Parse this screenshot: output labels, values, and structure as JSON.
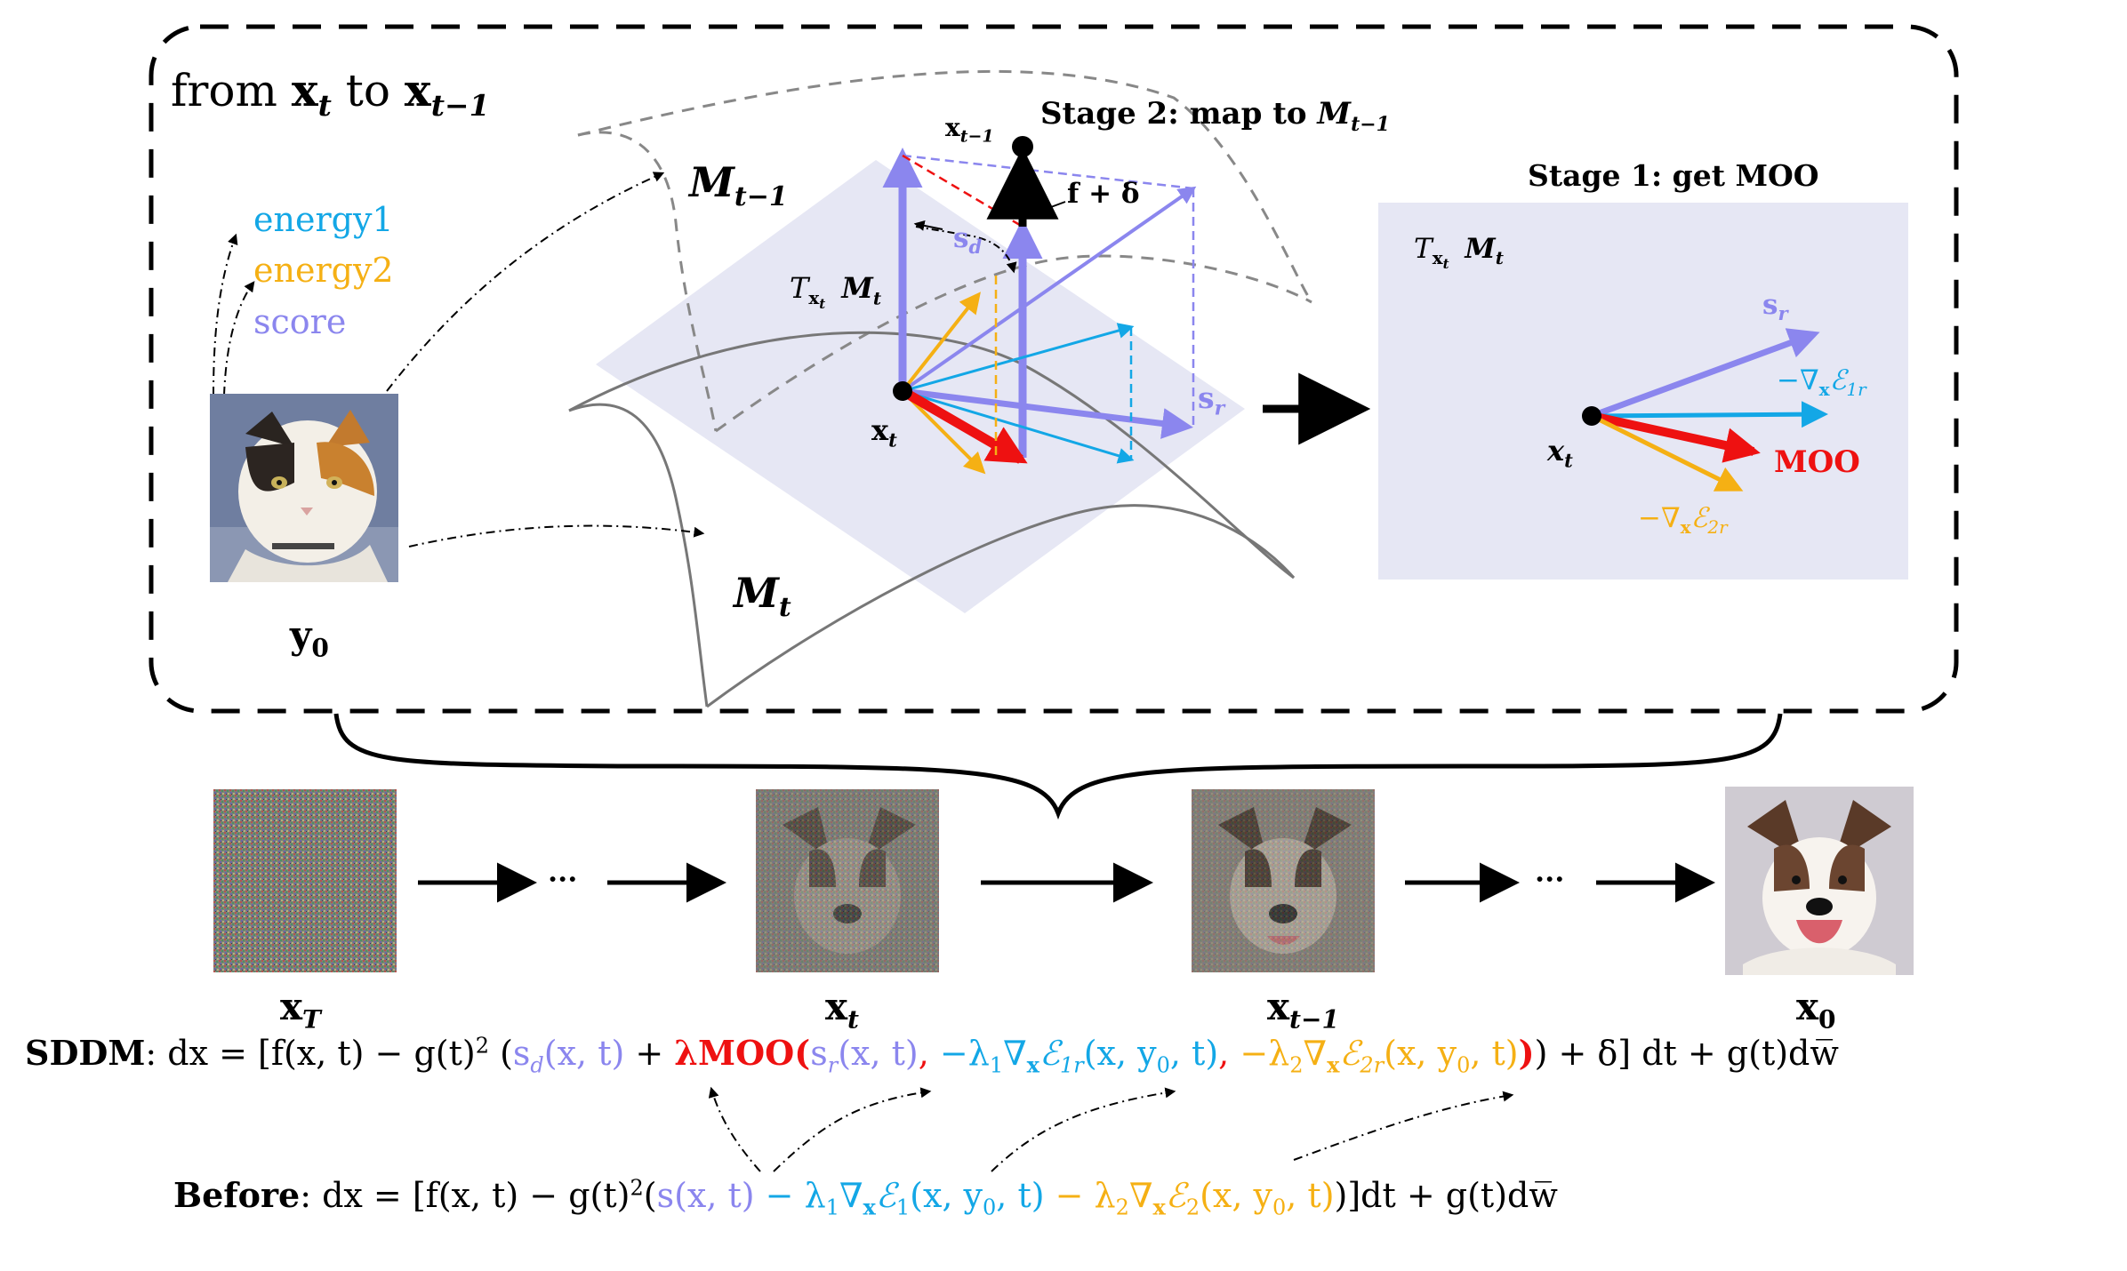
{
  "colors": {
    "score": "#8b86ee",
    "energy1": "#13a7e6",
    "energy2": "#f5b014",
    "moo": "#ee1111",
    "panel": "#e6e7f4"
  },
  "top_box": {
    "title_from": "from ",
    "title_x": "x",
    "title_t": "t",
    "title_to": " to ",
    "title_x2": "x",
    "title_t1": "t−1"
  },
  "legend": {
    "energy1": "energy1",
    "energy2": "energy2",
    "score": "score"
  },
  "cat_label": "y",
  "cat_label_sub": "0",
  "manifold": {
    "m_prev": "M",
    "m_prev_sub": "t−1",
    "m_t": "M",
    "m_t_sub": "t",
    "tangent_T": "T",
    "tangent_sub": "x",
    "tangent_subsub": "t",
    "tangent_M": "M",
    "tangent_M_sub": "t",
    "xt": "x",
    "xt_sub": "t",
    "xprev": "x",
    "xprev_sub": "t−1",
    "sd": "s",
    "sd_sub": "d",
    "sr": "s",
    "sr_sub": "r",
    "f_delta": "f + δ"
  },
  "stage2": {
    "title": "Stage 2: map to ",
    "m": "M",
    "m_sub": "t−1"
  },
  "stage1": {
    "title": "Stage 1: get MOO",
    "T": "T",
    "T_sub": "x",
    "T_subsub": "t",
    "M": "M",
    "M_sub": "t",
    "sr": "s",
    "sr_sub": "r",
    "grad1": "−∇",
    "grad1_x": "x",
    "grad1_E": "ℰ",
    "grad1_sub": "1r",
    "moo": "MOO",
    "grad2": "−∇",
    "grad2_x": "x",
    "grad2_E": "ℰ",
    "grad2_sub": "2r",
    "xt": "x",
    "xt_sub": "t"
  },
  "chain": {
    "xT": "x",
    "xT_sub": "T",
    "xt": "x",
    "xt_sub": "t",
    "xprev": "x",
    "xprev_sub": "t−1",
    "x0": "x",
    "x0_sub": "0",
    "dots1": "···",
    "dots2": "···"
  },
  "sddm": {
    "label": "SDDM",
    "p1": ": dx = [f(x, t) − g(t)",
    "p1sup": "2",
    "p1b": " (",
    "sd": "s",
    "sd_sub": "d",
    "sd_args": "(x, t)",
    "plus": " + ",
    "lam_moo": "λMOO(",
    "sr": "s",
    "sr_sub": "r",
    "sr_args": "(x, t)",
    "comma1": ", ",
    "e1a": "−λ",
    "e1a_sub": "1",
    "e1b": "∇",
    "e1b_sub": "x",
    "e1c": "ℰ",
    "e1c_sub": "1r",
    "e1d": "(x, y",
    "e1d_sub": "0",
    "e1e": ", t)",
    "comma2": ", ",
    "e2a": "−λ",
    "e2a_sub": "2",
    "e2b": "∇",
    "e2b_sub": "x",
    "e2c": "ℰ",
    "e2c_sub": "2r",
    "e2d": "(x, y",
    "e2d_sub": "0",
    "e2e": ", t)",
    "close_red": ")",
    "close_rest": ") + δ] dt + g(t)dw̅"
  },
  "before": {
    "label": "Before",
    "p1": ": dx = [f(x, t) − g(t)",
    "p1sup": "2",
    "p1b": "(",
    "s": "s(x, t)",
    "e1a": " − λ",
    "e1a_sub": "1",
    "e1b": "∇",
    "e1b_sub": "x",
    "e1c": "ℰ",
    "e1c_sub": "1",
    "e1d": "(x, y",
    "e1d_sub": "0",
    "e1e": ", t)",
    "e2a": " − λ",
    "e2a_sub": "2",
    "e2b": "∇",
    "e2b_sub": "x",
    "e2c": "ℰ",
    "e2c_sub": "2",
    "e2d": "(x, y",
    "e2d_sub": "0",
    "e2e": ", t)",
    "close": ")]dt + g(t)dw̅"
  }
}
